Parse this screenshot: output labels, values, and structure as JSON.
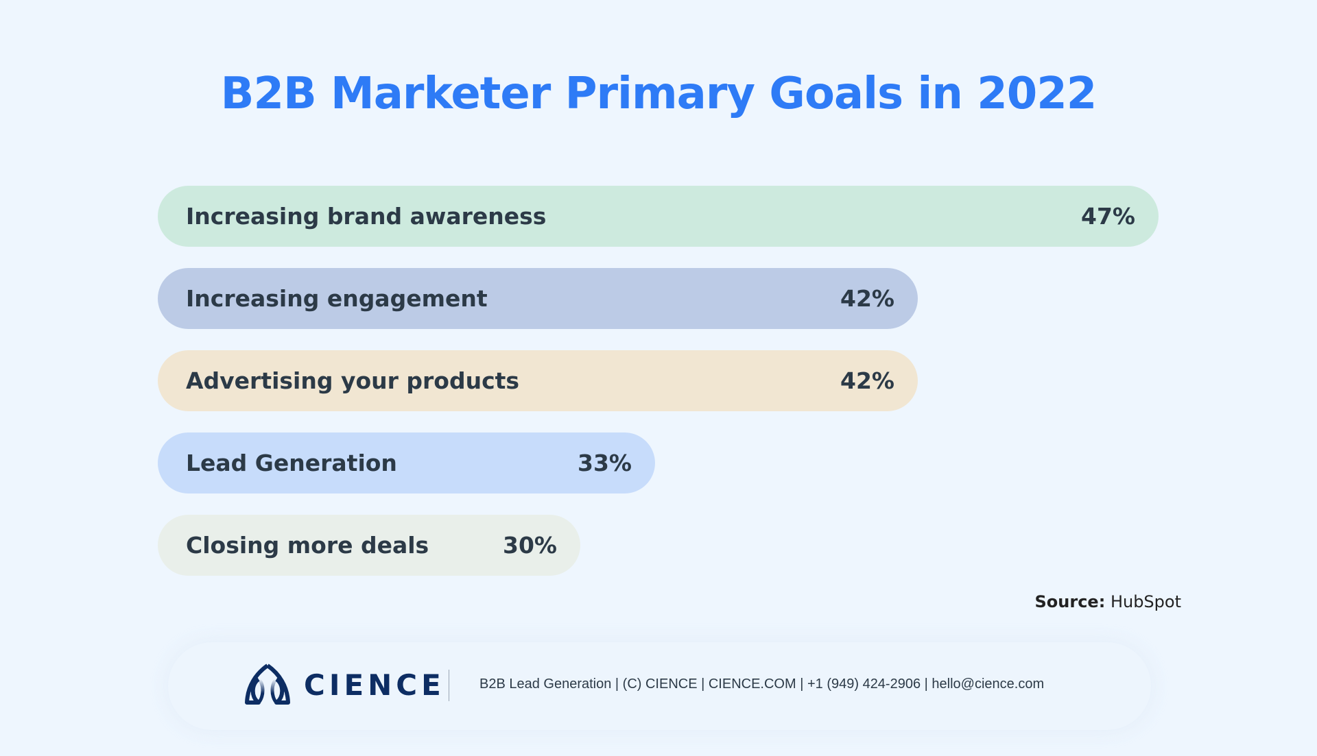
{
  "chart_data": {
    "type": "bar",
    "orientation": "horizontal",
    "title": "B2B Marketer Primary Goals in 2022",
    "categories": [
      "Increasing brand awareness",
      "Increasing engagement",
      "Advertising your products",
      "Lead Generation",
      "Closing more deals"
    ],
    "values": [
      47,
      42,
      42,
      33,
      30
    ],
    "value_labels": [
      "47%",
      "42%",
      "42%",
      "33%",
      "30%"
    ],
    "colors": [
      "#cdeade",
      "#bccbe6",
      "#f1e6d2",
      "#c7dcfb",
      "#e9efea"
    ],
    "grid": false
  },
  "source": {
    "label": "Source:",
    "value": "HubSpot"
  },
  "footer": {
    "brand": "CIENCE",
    "text": "B2B Lead Generation | (C) CIENCE | CIENCE.COM | +1 (949) 424-2906 | hello@cience.com"
  }
}
